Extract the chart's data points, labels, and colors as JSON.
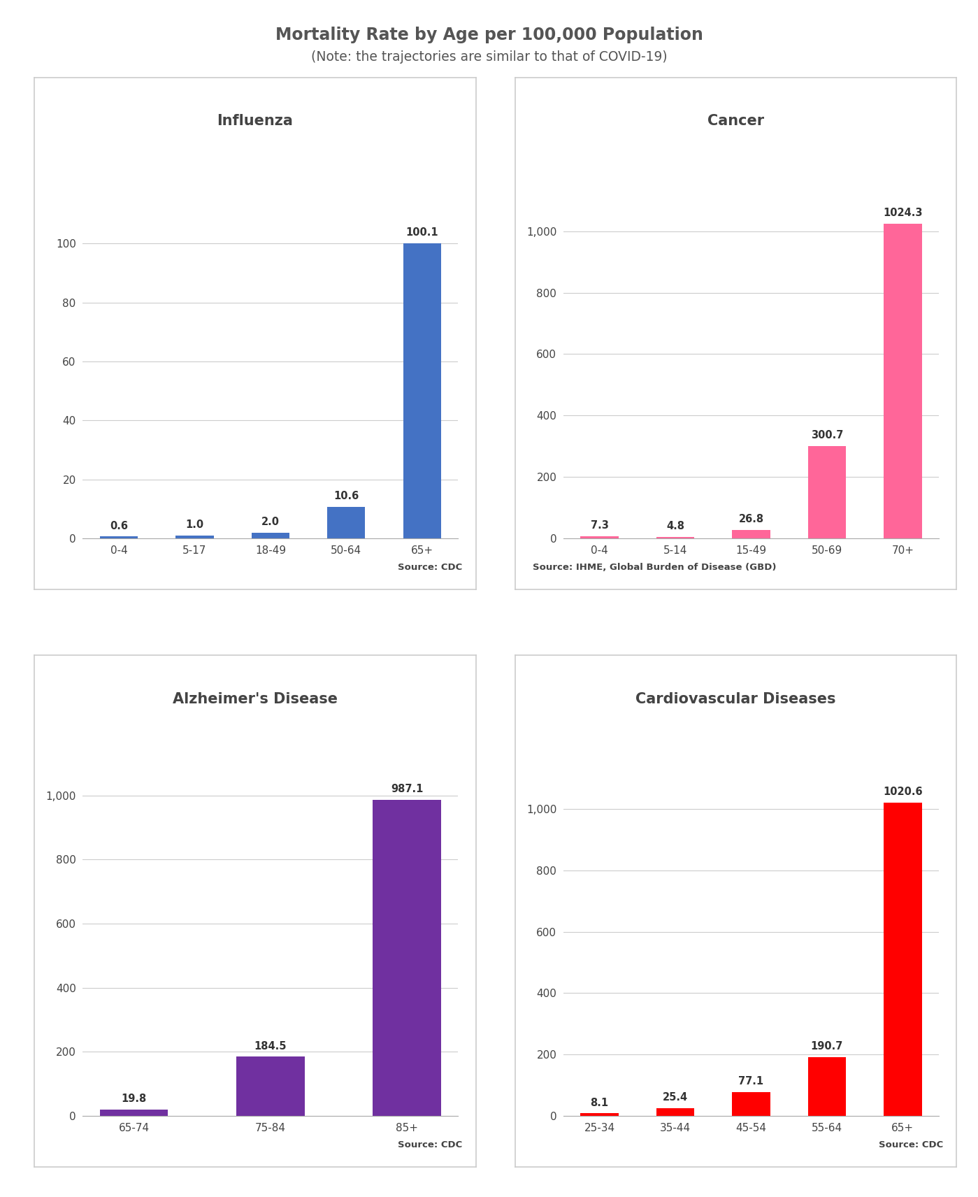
{
  "title": "Mortality Rate by Age per 100,000 Population",
  "subtitle": "(Note: the trajectories are similar to that of COVID-19)",
  "title_color": "#555555",
  "background_color": "#ffffff",
  "panel_background": "#ffffff",
  "panel_border": "#cccccc",
  "charts": [
    {
      "title": "Influenza",
      "categories": [
        "0-4",
        "5-17",
        "18-49",
        "50-64",
        "65+"
      ],
      "values": [
        0.6,
        1.0,
        2.0,
        10.6,
        100.1
      ],
      "color": "#4472C4",
      "source": "Source: CDC",
      "source_align": "right",
      "ylim": [
        0,
        125
      ],
      "yticks": [
        0,
        20,
        40,
        60,
        80,
        100
      ]
    },
    {
      "title": "Cancer",
      "categories": [
        "0-4",
        "5-14",
        "15-49",
        "50-69",
        "70+"
      ],
      "values": [
        7.3,
        4.8,
        26.8,
        300.7,
        1024.3
      ],
      "color": "#FF6699",
      "source": "Source: IHME, Global Burden of Disease (GBD)",
      "source_align": "left",
      "ylim": [
        0,
        1200
      ],
      "yticks": [
        0,
        200,
        400,
        600,
        800,
        1000
      ]
    },
    {
      "title": "Alzheimer's Disease",
      "categories": [
        "65-74",
        "75-84",
        "85+"
      ],
      "values": [
        19.8,
        184.5,
        987.1
      ],
      "color": "#7030A0",
      "source": "Source: CDC",
      "source_align": "right",
      "ylim": [
        0,
        1150
      ],
      "yticks": [
        0,
        200,
        400,
        600,
        800,
        1000
      ]
    },
    {
      "title": "Cardiovascular Diseases",
      "categories": [
        "25-34",
        "35-44",
        "45-54",
        "55-64",
        "65+"
      ],
      "values": [
        8.1,
        25.4,
        77.1,
        190.7,
        1020.6
      ],
      "color": "#FF0000",
      "source": "Source: CDC",
      "source_align": "right",
      "ylim": [
        0,
        1200
      ],
      "yticks": [
        0,
        200,
        400,
        600,
        800,
        1000
      ]
    }
  ]
}
